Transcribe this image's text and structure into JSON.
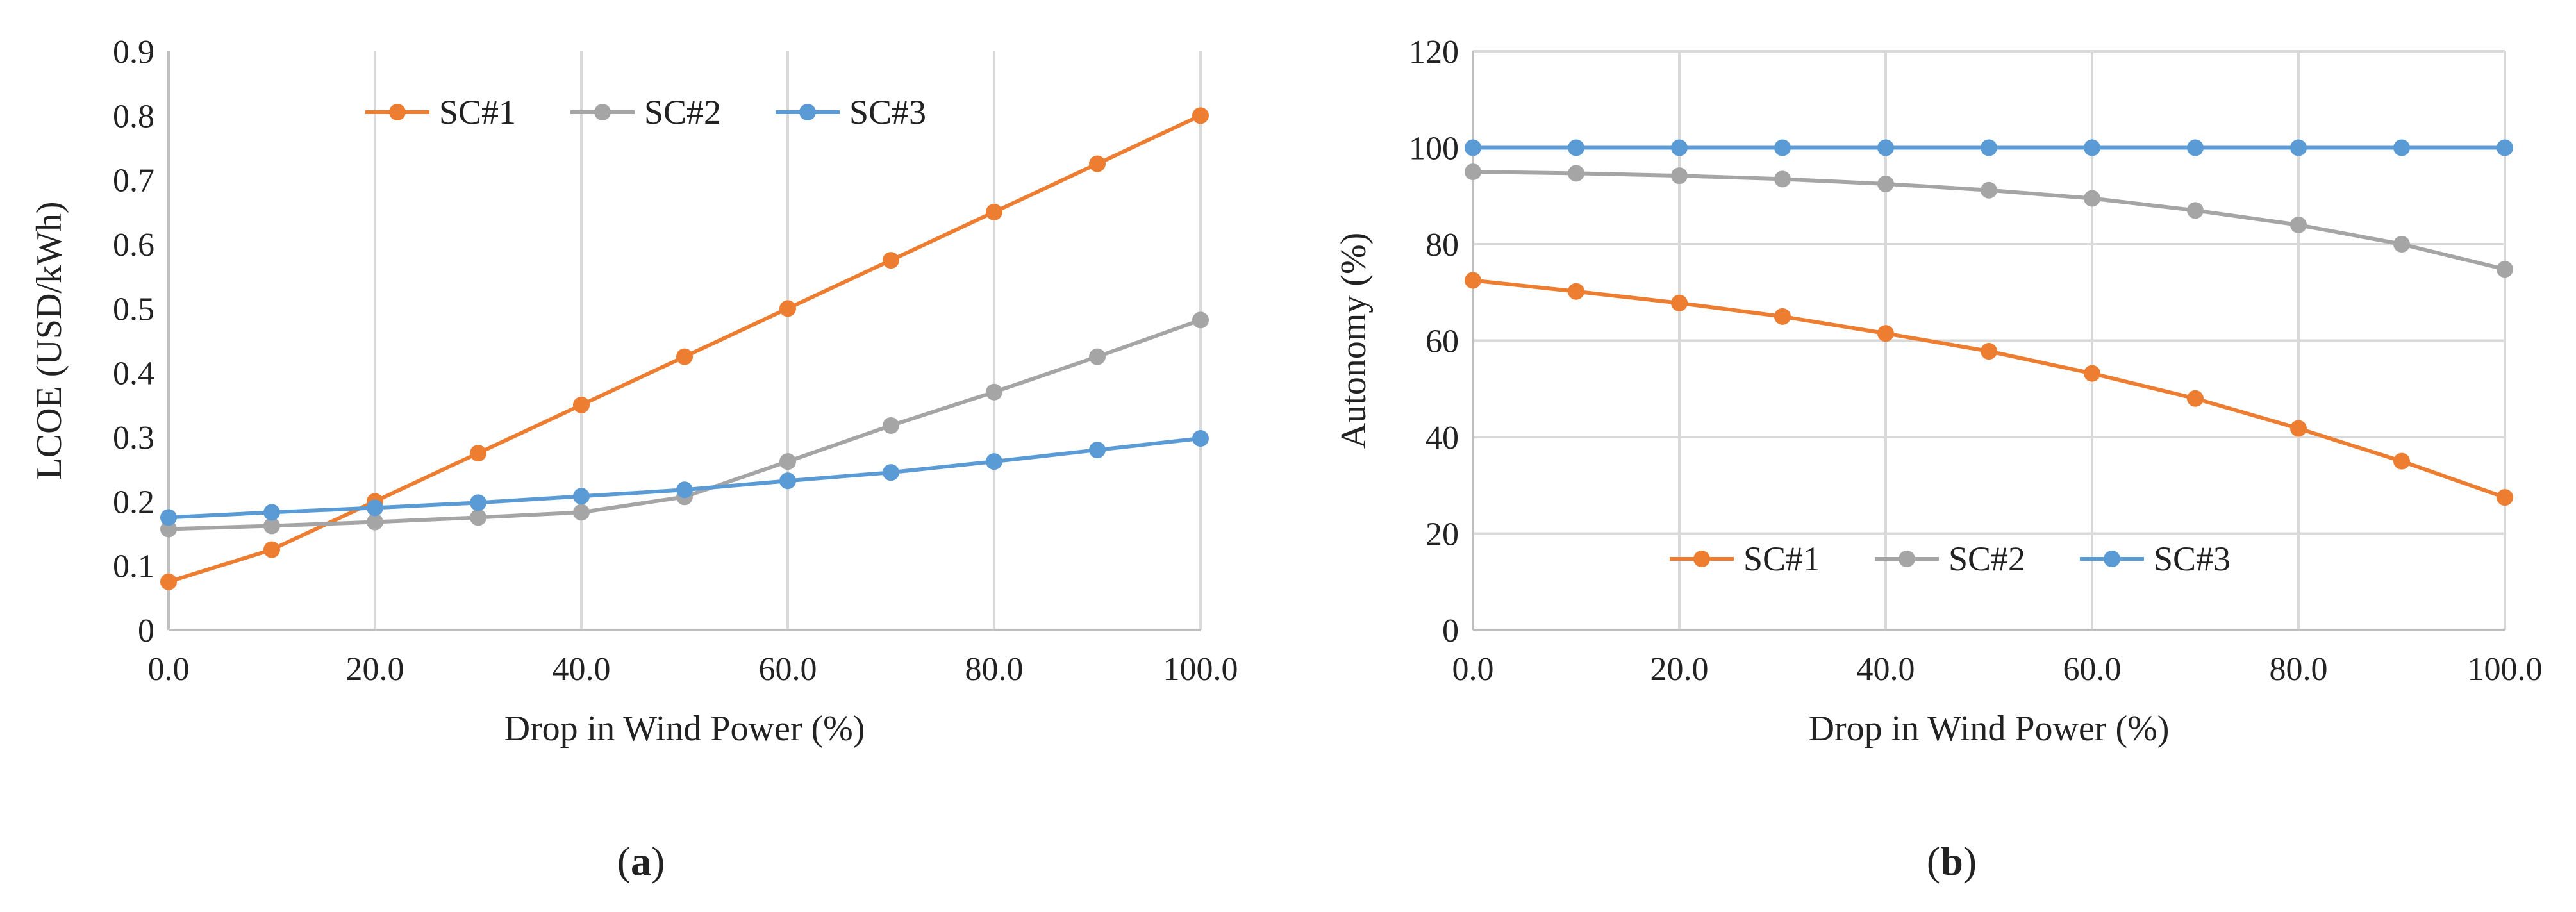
{
  "chart_data": [
    {
      "type": "line",
      "panel_label": "(a)",
      "panel_letter": "a",
      "title": "",
      "xlabel": "Drop in Wind Power (%)",
      "ylabel": "LCOE (USD/kWh)",
      "x": [
        0,
        10,
        20,
        30,
        40,
        50,
        60,
        70,
        80,
        90,
        100
      ],
      "xlim": [
        0,
        100
      ],
      "ylim": [
        0,
        0.9
      ],
      "xticks": [
        0,
        20,
        40,
        60,
        80,
        100
      ],
      "xtick_labels": [
        "0.0",
        "20.0",
        "40.0",
        "60.0",
        "80.0",
        "100.0"
      ],
      "yticks": [
        0,
        0.1,
        0.2,
        0.3,
        0.4,
        0.5,
        0.6,
        0.7,
        0.8,
        0.9
      ],
      "ytick_labels": [
        "0",
        "0.1",
        "0.2",
        "0.3",
        "0.4",
        "0.5",
        "0.6",
        "0.7",
        "0.8",
        "0.9"
      ],
      "grid": "vertical",
      "legend_position": "top-center",
      "series": [
        {
          "name": "SC#1",
          "color": "#ED7D31",
          "values": [
            0.075,
            0.125,
            0.2,
            0.275,
            0.35,
            0.425,
            0.5,
            0.575,
            0.65,
            0.725,
            0.8
          ]
        },
        {
          "name": "SC#2",
          "color": "#A5A5A5",
          "values": [
            0.157,
            0.162,
            0.168,
            0.175,
            0.183,
            0.207,
            0.262,
            0.318,
            0.37,
            0.425,
            0.482
          ]
        },
        {
          "name": "SC#3",
          "color": "#5B9BD5",
          "values": [
            0.175,
            0.183,
            0.19,
            0.198,
            0.208,
            0.218,
            0.232,
            0.245,
            0.262,
            0.28,
            0.298
          ]
        }
      ]
    },
    {
      "type": "line",
      "panel_label": "(b)",
      "panel_letter": "b",
      "title": "",
      "xlabel": "Drop in Wind Power (%)",
      "ylabel": "Autonomy (%)",
      "x": [
        0,
        10,
        20,
        30,
        40,
        50,
        60,
        70,
        80,
        90,
        100
      ],
      "xlim": [
        0,
        100
      ],
      "ylim": [
        0,
        120
      ],
      "xticks": [
        0,
        20,
        40,
        60,
        80,
        100
      ],
      "xtick_labels": [
        "0.0",
        "20.0",
        "40.0",
        "60.0",
        "80.0",
        "100.0"
      ],
      "yticks": [
        0,
        20,
        40,
        60,
        80,
        100,
        120
      ],
      "ytick_labels": [
        "0",
        "20",
        "40",
        "60",
        "80",
        "100",
        "120"
      ],
      "grid": "both",
      "legend_position": "bottom-center",
      "series": [
        {
          "name": "SC#1",
          "color": "#ED7D31",
          "values": [
            72.5,
            70.2,
            67.8,
            65.0,
            61.5,
            57.8,
            53.2,
            48.0,
            41.8,
            35.0,
            27.5
          ]
        },
        {
          "name": "SC#2",
          "color": "#A5A5A5",
          "values": [
            95.0,
            94.7,
            94.2,
            93.5,
            92.5,
            91.2,
            89.5,
            87.0,
            84.0,
            80.0,
            74.8
          ]
        },
        {
          "name": "SC#3",
          "color": "#5B9BD5",
          "values": [
            100,
            100,
            100,
            100,
            100,
            100,
            100,
            100,
            100,
            100,
            100
          ]
        }
      ]
    }
  ]
}
